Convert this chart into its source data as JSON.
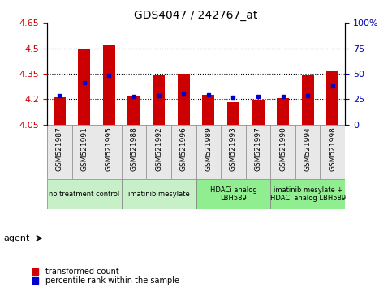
{
  "title": "GDS4047 / 242767_at",
  "samples": [
    "GSM521987",
    "GSM521991",
    "GSM521995",
    "GSM521988",
    "GSM521992",
    "GSM521996",
    "GSM521989",
    "GSM521993",
    "GSM521997",
    "GSM521990",
    "GSM521994",
    "GSM521998"
  ],
  "bar_values": [
    4.21,
    4.5,
    4.52,
    4.22,
    4.345,
    4.35,
    4.225,
    4.185,
    4.195,
    4.205,
    4.345,
    4.37
  ],
  "dot_values": [
    4.22,
    4.3,
    4.34,
    4.215,
    4.22,
    4.23,
    4.225,
    4.21,
    4.215,
    4.215,
    4.22,
    4.28
  ],
  "ymin": 4.05,
  "ymax": 4.65,
  "yticks": [
    4.05,
    4.2,
    4.35,
    4.5,
    4.65
  ],
  "ytick_labels": [
    "4.05",
    "4.2",
    "4.35",
    "4.5",
    "4.65"
  ],
  "right_yticks_pct": [
    0,
    25,
    50,
    75,
    100
  ],
  "right_ytick_labels": [
    "0",
    "25",
    "50",
    "75",
    "100%"
  ],
  "grid_values": [
    4.2,
    4.35,
    4.5
  ],
  "bar_color": "#cc0000",
  "dot_color": "#0000cc",
  "agent_groups": [
    {
      "label": "no treatment control",
      "start": 0,
      "end": 3,
      "color": "#c8f0c8"
    },
    {
      "label": "imatinib mesylate",
      "start": 3,
      "end": 6,
      "color": "#c8f0c8"
    },
    {
      "label": "HDACi analog\nLBH589",
      "start": 6,
      "end": 9,
      "color": "#90ee90"
    },
    {
      "label": "imatinib mesylate +\nHDACi analog LBH589",
      "start": 9,
      "end": 12,
      "color": "#90ee90"
    }
  ],
  "legend_items": [
    {
      "label": "transformed count",
      "color": "#cc0000"
    },
    {
      "label": "percentile rank within the sample",
      "color": "#0000cc"
    }
  ],
  "xlabel_agent": "agent",
  "bar_width": 0.5,
  "tick_color_left": "#cc0000",
  "tick_color_right": "#0000bb"
}
